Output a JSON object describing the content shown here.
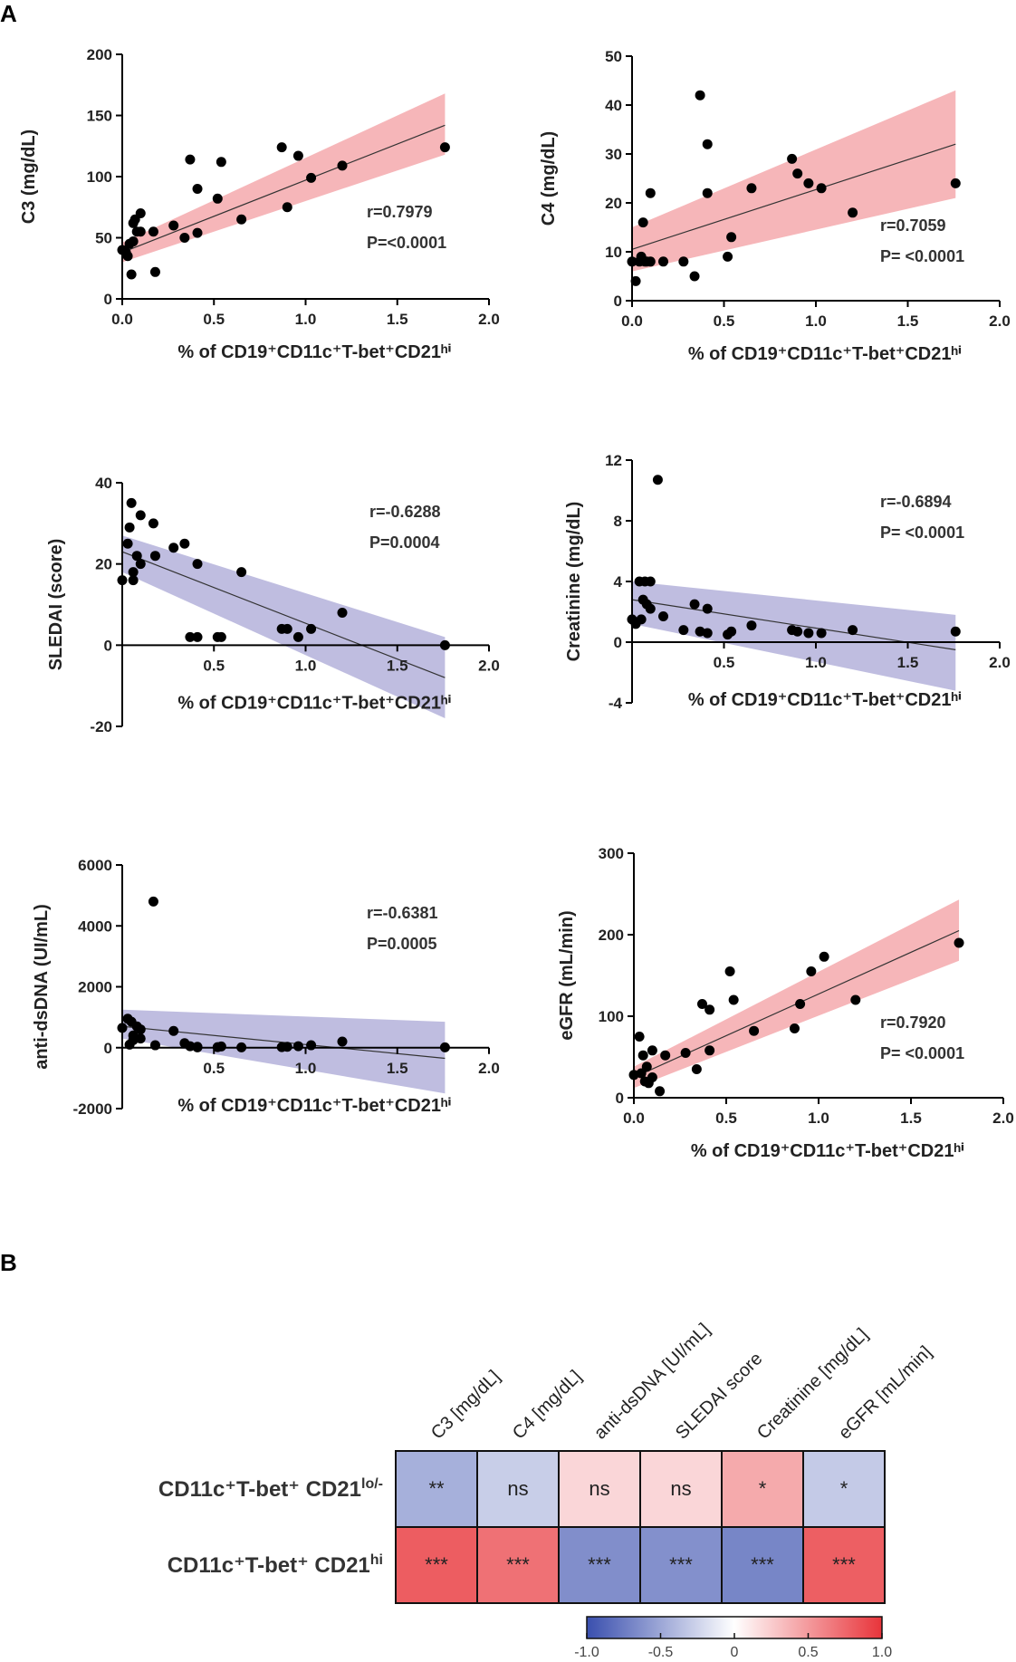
{
  "panels": {
    "a": "A",
    "b": "B"
  },
  "chart_data": [
    {
      "type": "scatter",
      "title": "",
      "xlabel": "% of CD19⁺CD11c⁺T-bet⁺CD21ʰⁱ",
      "ylabel": "C3 (mg/dL)",
      "xlim": [
        0,
        2.0
      ],
      "ylim": [
        0,
        200
      ],
      "xticks": [
        0.0,
        0.5,
        1.0,
        1.5,
        2.0
      ],
      "yticks": [
        0,
        50,
        100,
        150,
        200
      ],
      "tick_decimals_x": 1,
      "tick_decimals_y": 0,
      "r_label": "r=0.7979",
      "p_label": "P=<0.0001",
      "band_color": "#f4a9ad",
      "fit": {
        "x": [
          0.0,
          1.76
        ],
        "y": [
          38,
          142
        ]
      },
      "band": {
        "x": [
          0.0,
          1.76
        ],
        "lower": [
          30,
          118
        ],
        "upper": [
          46,
          168
        ]
      },
      "points": {
        "x": [
          0.0,
          0.02,
          0.03,
          0.04,
          0.05,
          0.06,
          0.06,
          0.07,
          0.08,
          0.1,
          0.1,
          0.17,
          0.18,
          0.28,
          0.34,
          0.37,
          0.41,
          0.41,
          0.52,
          0.54,
          0.65,
          0.87,
          0.9,
          0.96,
          1.03,
          1.2,
          1.76
        ],
        "y": [
          40,
          38,
          35,
          45,
          20,
          47,
          62,
          65,
          55,
          70,
          55,
          55,
          22,
          60,
          50,
          114,
          90,
          54,
          82,
          112,
          65,
          124,
          75,
          117,
          99,
          109,
          124
        ]
      }
    },
    {
      "type": "scatter",
      "title": "",
      "xlabel": "% of CD19⁺CD11c⁺T-bet⁺CD21ʰⁱ",
      "ylabel": "C4 (mg/dL)",
      "xlim": [
        0,
        2.0
      ],
      "ylim": [
        0,
        50
      ],
      "xticks": [
        0.0,
        0.5,
        1.0,
        1.5,
        2.0
      ],
      "yticks": [
        0,
        10,
        20,
        30,
        40,
        50
      ],
      "tick_decimals_x": 1,
      "tick_decimals_y": 0,
      "r_label": "r=0.7059",
      "p_label": "P= <0.0001",
      "band_color": "#f4a9ad",
      "fit": {
        "x": [
          0.0,
          1.76
        ],
        "y": [
          10.5,
          32
        ]
      },
      "band": {
        "x": [
          0.0,
          1.76
        ],
        "lower": [
          6,
          21
        ],
        "upper": [
          15,
          43
        ]
      },
      "points": {
        "x": [
          0.0,
          0.02,
          0.04,
          0.05,
          0.06,
          0.07,
          0.08,
          0.1,
          0.1,
          0.17,
          0.28,
          0.34,
          0.37,
          0.41,
          0.41,
          0.52,
          0.54,
          0.65,
          0.87,
          0.9,
          0.96,
          1.03,
          1.2,
          1.76
        ],
        "y": [
          8,
          4,
          8,
          9,
          16,
          8,
          8,
          8,
          22,
          8,
          8,
          5,
          42,
          32,
          22,
          9,
          13,
          23,
          29,
          26,
          24,
          23,
          18,
          24
        ]
      }
    },
    {
      "type": "scatter",
      "title": "",
      "xlabel": "% of CD19⁺CD11c⁺T-bet⁺CD21ʰⁱ",
      "ylabel": "SLEDAI (score)",
      "xlim": [
        0,
        2.0
      ],
      "ylim": [
        -20,
        40
      ],
      "xticks": [
        0.5,
        1.0,
        1.5,
        2.0
      ],
      "yticks": [
        -20,
        0,
        20,
        40
      ],
      "tick_decimals_x": 1,
      "tick_decimals_y": 0,
      "r_label": "r=-0.6288",
      "p_label": "P=0.0004",
      "band_color": "#b4b1db",
      "fit": {
        "x": [
          0.0,
          1.76
        ],
        "y": [
          23,
          -8
        ]
      },
      "band": {
        "x": [
          0.0,
          1.76
        ],
        "lower": [
          18,
          -18
        ],
        "upper": [
          27,
          2
        ]
      },
      "points": {
        "x": [
          0.0,
          0.03,
          0.04,
          0.05,
          0.06,
          0.06,
          0.08,
          0.1,
          0.1,
          0.17,
          0.18,
          0.28,
          0.34,
          0.37,
          0.41,
          0.41,
          0.52,
          0.54,
          0.65,
          0.87,
          0.9,
          0.96,
          1.03,
          1.2,
          1.76
        ],
        "y": [
          16,
          25,
          29,
          35,
          16,
          18,
          22,
          32,
          20,
          30,
          22,
          24,
          25,
          2,
          2,
          20,
          2,
          2,
          18,
          4,
          4,
          2,
          4,
          8,
          0
        ]
      }
    },
    {
      "type": "scatter",
      "title": "",
      "xlabel": "% of CD19⁺CD11c⁺T-bet⁺CD21ʰⁱ",
      "ylabel": "Creatinine (mg/dL)",
      "xlim": [
        0,
        2.0
      ],
      "ylim": [
        -4,
        12
      ],
      "xticks": [
        0.5,
        1.0,
        1.5,
        2.0
      ],
      "yticks": [
        -4,
        0,
        4,
        8,
        12
      ],
      "tick_decimals_x": 1,
      "tick_decimals_y": 0,
      "r_label": "r=-0.6894",
      "p_label": "P= <0.0001",
      "band_color": "#b4b1db",
      "fit": {
        "x": [
          0.0,
          1.76
        ],
        "y": [
          2.8,
          -0.5
        ]
      },
      "band": {
        "x": [
          0.0,
          1.76
        ],
        "lower": [
          1.2,
          -3.2
        ],
        "upper": [
          4.0,
          1.8
        ]
      },
      "points": {
        "x": [
          0.0,
          0.02,
          0.04,
          0.05,
          0.06,
          0.07,
          0.08,
          0.1,
          0.1,
          0.14,
          0.17,
          0.28,
          0.34,
          0.37,
          0.41,
          0.41,
          0.52,
          0.54,
          0.65,
          0.87,
          0.9,
          0.96,
          1.03,
          1.2,
          1.76
        ],
        "y": [
          1.5,
          1.2,
          4.0,
          1.5,
          2.8,
          4.0,
          2.5,
          2.2,
          4.0,
          10.7,
          1.7,
          0.8,
          2.5,
          0.7,
          2.2,
          0.6,
          0.5,
          0.7,
          1.1,
          0.8,
          0.7,
          0.6,
          0.6,
          0.8,
          0.7
        ]
      }
    },
    {
      "type": "scatter",
      "title": "",
      "xlabel": "% of CD19⁺CD11c⁺T-bet⁺CD21ʰⁱ",
      "ylabel": "anti-dsDNA (UI/mL)",
      "xlim": [
        0,
        2.0
      ],
      "ylim": [
        -2000,
        6000
      ],
      "xticks": [
        0.5,
        1.0,
        1.5,
        2.0
      ],
      "yticks": [
        -2000,
        0,
        2000,
        4000,
        6000
      ],
      "tick_decimals_x": 1,
      "tick_decimals_y": 0,
      "r_label": "r=-0.6381",
      "p_label": "P=0.0005",
      "band_color": "#b4b1db",
      "fit": {
        "x": [
          0.0,
          1.76
        ],
        "y": [
          700,
          -350
        ]
      },
      "band": {
        "x": [
          0.0,
          1.76
        ],
        "lower": [
          300,
          -1500
        ],
        "upper": [
          1250,
          850
        ]
      },
      "points": {
        "x": [
          0.0,
          0.03,
          0.04,
          0.05,
          0.06,
          0.06,
          0.08,
          0.1,
          0.1,
          0.17,
          0.18,
          0.28,
          0.34,
          0.37,
          0.41,
          0.41,
          0.52,
          0.54,
          0.65,
          0.87,
          0.9,
          0.96,
          1.03,
          1.2,
          1.76
        ],
        "y": [
          650,
          950,
          100,
          850,
          250,
          400,
          700,
          600,
          300,
          4800,
          80,
          550,
          150,
          50,
          10,
          30,
          20,
          40,
          10,
          20,
          30,
          50,
          80,
          200,
          10
        ]
      }
    },
    {
      "type": "scatter",
      "title": "",
      "xlabel": "% of CD19⁺CD11c⁺T-bet⁺CD21ʰⁱ",
      "ylabel": "eGFR (mL/min)",
      "xlim": [
        0,
        2.0
      ],
      "ylim": [
        0,
        300
      ],
      "xticks": [
        0.0,
        0.5,
        1.0,
        1.5,
        2.0
      ],
      "yticks": [
        0,
        100,
        200,
        300
      ],
      "tick_decimals_x": 1,
      "tick_decimals_y": 0,
      "r_label": "r=0.7920",
      "p_label": "P= <0.0001",
      "band_color": "#f4a9ad",
      "fit": {
        "x": [
          0.0,
          1.76
        ],
        "y": [
          25,
          205
        ]
      },
      "band": {
        "x": [
          0.0,
          1.76
        ],
        "lower": [
          12,
          168
        ],
        "upper": [
          38,
          243
        ]
      },
      "points": {
        "x": [
          0.0,
          0.03,
          0.04,
          0.05,
          0.06,
          0.07,
          0.08,
          0.1,
          0.1,
          0.14,
          0.17,
          0.28,
          0.34,
          0.37,
          0.41,
          0.41,
          0.52,
          0.54,
          0.65,
          0.87,
          0.9,
          0.96,
          1.03,
          1.2,
          1.76
        ],
        "y": [
          28,
          75,
          30,
          52,
          20,
          38,
          18,
          58,
          25,
          8,
          52,
          55,
          35,
          115,
          108,
          58,
          155,
          120,
          82,
          85,
          115,
          155,
          173,
          120,
          190
        ]
      }
    },
    {
      "type": "heatmap",
      "title": "",
      "columns": [
        "C3 [mg/dL]",
        "C4 [mg/dL]",
        "anti-dsDNA [UI/mL]",
        "SLEDAI score",
        "Creatinine [mg/dL]",
        "eGFR [mL/min]"
      ],
      "rows": [
        {
          "label_main": "CD11c⁺T-bet⁺ CD21",
          "label_sup": "lo/-"
        },
        {
          "label_main": "CD11c⁺T-bet⁺ CD21",
          "label_sup": "hi"
        }
      ],
      "values": [
        [
          -0.45,
          -0.28,
          0.2,
          0.2,
          0.42,
          -0.3
        ],
        [
          0.8,
          0.7,
          -0.64,
          -0.63,
          -0.69,
          0.79
        ]
      ],
      "significance": [
        [
          "**",
          "ns",
          "ns",
          "ns",
          "*",
          "*"
        ],
        [
          "***",
          "***",
          "***",
          "***",
          "***",
          "***"
        ]
      ],
      "colorbar": {
        "min": -1.0,
        "max": 1.0,
        "ticks": [
          "-1.0",
          "-0.5",
          "0",
          "0.5",
          "1.0"
        ]
      },
      "colors": {
        "negative": "#3a4fae",
        "neutral": "#ffffff",
        "positive": "#e8343a"
      }
    }
  ]
}
